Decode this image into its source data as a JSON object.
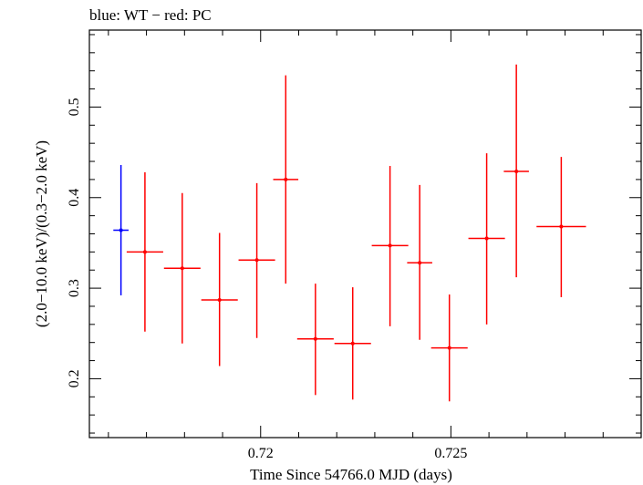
{
  "chart_data": {
    "type": "scatter",
    "title": "blue: WT − red: PC",
    "xlabel": "Time Since 54766.0 MJD (days)",
    "ylabel": "(2.0−10.0 keV)/(0.3−2.0 keV)",
    "xlim": [
      0.7155,
      0.73
    ],
    "ylim": [
      0.135,
      0.585
    ],
    "x_major_ticks": [
      0.72,
      0.725
    ],
    "x_tick_labels": [
      "0.72",
      "0.725"
    ],
    "y_major_ticks": [
      0.2,
      0.3,
      0.4,
      0.5
    ],
    "y_tick_labels": [
      "0.2",
      "0.3",
      "0.4",
      "0.5"
    ],
    "grid": false,
    "colors": {
      "WT": "#0000ff",
      "PC": "#ff0000"
    },
    "series": [
      {
        "name": "WT",
        "color": "#0000ff",
        "points": [
          {
            "x": 0.71633,
            "xerr": 0.0002,
            "y": 0.364,
            "yerr_low": 0.072,
            "yerr_high": 0.072
          }
        ]
      },
      {
        "name": "PC",
        "color": "#ff0000",
        "points": [
          {
            "x": 0.71696,
            "xerr": 0.00048,
            "y": 0.34,
            "yerr_low": 0.088,
            "yerr_high": 0.088
          },
          {
            "x": 0.71794,
            "xerr": 0.00048,
            "y": 0.322,
            "yerr_low": 0.083,
            "yerr_high": 0.083
          },
          {
            "x": 0.71892,
            "xerr": 0.00048,
            "y": 0.287,
            "yerr_low": 0.073,
            "yerr_high": 0.074
          },
          {
            "x": 0.7199,
            "xerr": 0.00048,
            "y": 0.331,
            "yerr_low": 0.086,
            "yerr_high": 0.085
          },
          {
            "x": 0.72066,
            "xerr": 0.00033,
            "y": 0.42,
            "yerr_low": 0.115,
            "yerr_high": 0.115
          },
          {
            "x": 0.72144,
            "xerr": 0.00048,
            "y": 0.244,
            "yerr_low": 0.062,
            "yerr_high": 0.061
          },
          {
            "x": 0.72242,
            "xerr": 0.00048,
            "y": 0.239,
            "yerr_low": 0.062,
            "yerr_high": 0.062
          },
          {
            "x": 0.7234,
            "xerr": 0.00048,
            "y": 0.347,
            "yerr_low": 0.089,
            "yerr_high": 0.088
          },
          {
            "x": 0.72418,
            "xerr": 0.00033,
            "y": 0.328,
            "yerr_low": 0.085,
            "yerr_high": 0.086
          },
          {
            "x": 0.72496,
            "xerr": 0.00048,
            "y": 0.234,
            "yerr_low": 0.059,
            "yerr_high": 0.059
          },
          {
            "x": 0.72594,
            "xerr": 0.00048,
            "y": 0.355,
            "yerr_low": 0.095,
            "yerr_high": 0.094
          },
          {
            "x": 0.72672,
            "xerr": 0.00033,
            "y": 0.429,
            "yerr_low": 0.117,
            "yerr_high": 0.118
          },
          {
            "x": 0.7279,
            "xerr": 0.00065,
            "y": 0.368,
            "yerr_low": 0.078,
            "yerr_high": 0.077
          }
        ]
      }
    ]
  }
}
